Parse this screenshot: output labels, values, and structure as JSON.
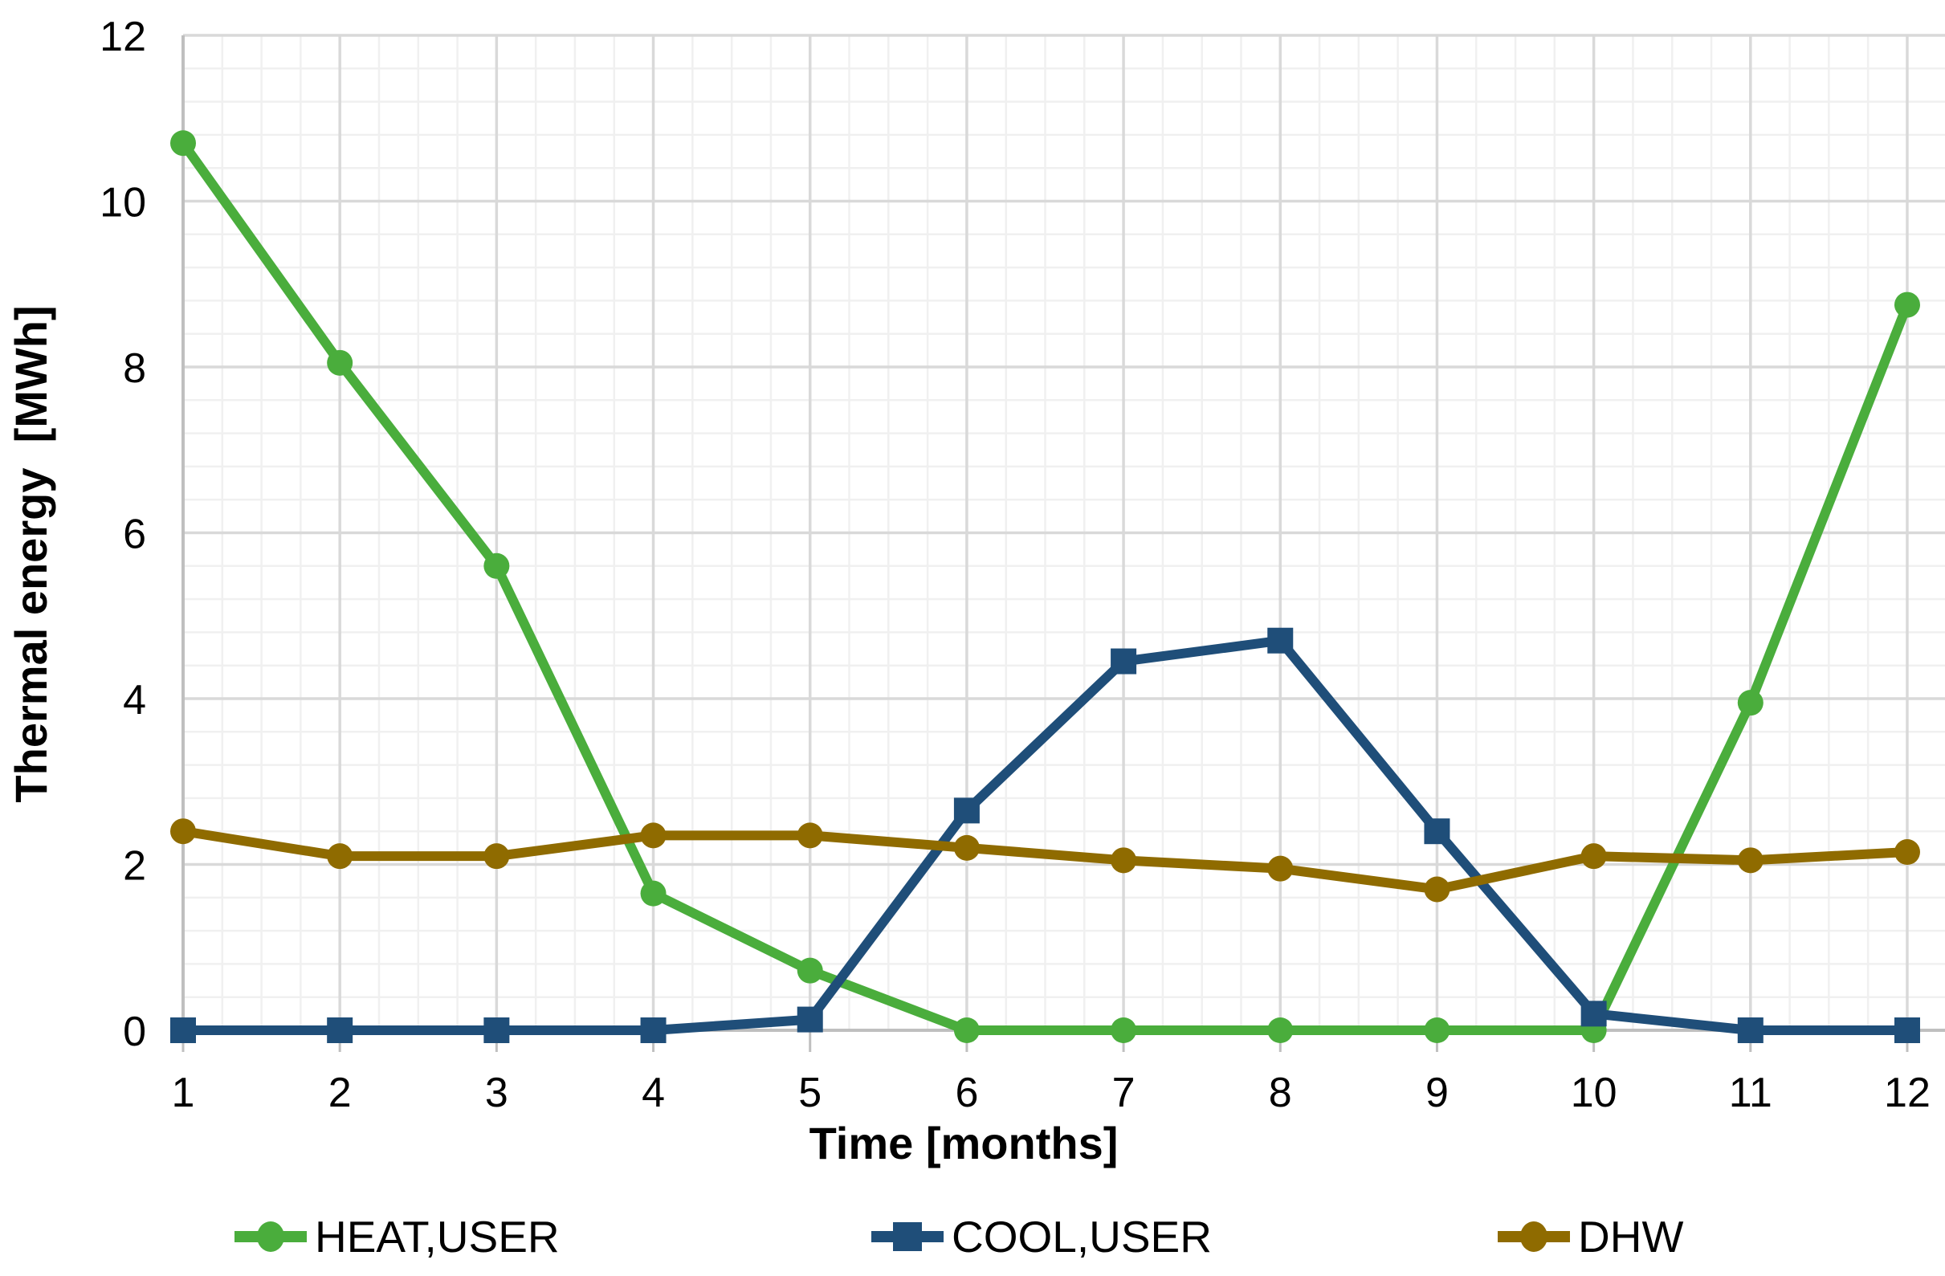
{
  "chart_data": {
    "type": "line",
    "title": "",
    "xlabel": "Time [months]",
    "ylabel": "Thermal energy  [MWh]",
    "x": [
      1,
      2,
      3,
      4,
      5,
      6,
      7,
      8,
      9,
      10,
      11,
      12
    ],
    "x_tick_labels": [
      "1",
      "2",
      "3",
      "4",
      "5",
      "6",
      "7",
      "8",
      "9",
      "10",
      "11",
      "12"
    ],
    "y_ticks": [
      0,
      2,
      4,
      6,
      8,
      10,
      12
    ],
    "y_tick_labels": [
      "0",
      "2",
      "4",
      "6",
      "8",
      "10",
      "12"
    ],
    "xlim": [
      1,
      12
    ],
    "ylim": [
      0,
      12
    ],
    "grid": "major + minor gridlines, light gray, on",
    "minor_grid_step_y": 0.4,
    "minor_grid_step_x": 0.25,
    "legend_position": "bottom",
    "series": [
      {
        "name": "HEAT,USER",
        "marker": "circle",
        "color": "#4aad3c",
        "values": [
          10.7,
          8.05,
          5.6,
          1.65,
          0.72,
          0,
          0,
          0,
          0,
          0,
          3.95,
          8.75
        ]
      },
      {
        "name": "COOL,USER",
        "marker": "square",
        "color": "#1f4e79",
        "values": [
          0,
          0,
          0,
          0,
          0.13,
          2.65,
          4.45,
          4.7,
          2.4,
          0.2,
          0,
          0
        ]
      },
      {
        "name": "DHW",
        "marker": "circle",
        "color": "#8f6b00",
        "values": [
          2.4,
          2.1,
          2.1,
          2.35,
          2.35,
          2.2,
          2.05,
          1.95,
          1.7,
          2.1,
          2.05,
          2.15
        ]
      }
    ],
    "units": "MWh"
  },
  "colors": {
    "background": "#ffffff",
    "major_grid": "#d9d9d9",
    "minor_grid": "#f0f0f0",
    "axis_line": "#bfbfbf",
    "text": "#000000"
  }
}
